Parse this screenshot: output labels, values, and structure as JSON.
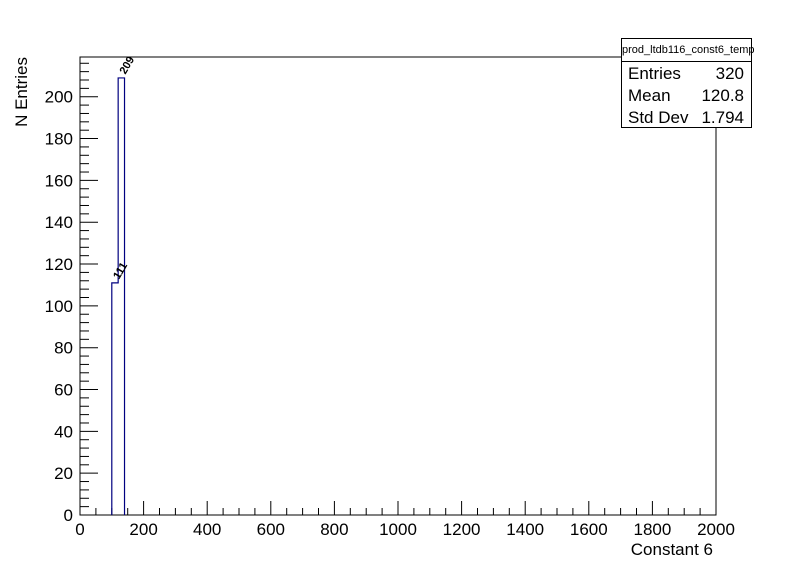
{
  "chart_data": {
    "type": "bar",
    "subtype": "histogram",
    "xlabel": "Constant 6",
    "ylabel": "N Entries",
    "xlim": [
      0,
      2000
    ],
    "ylim": [
      0,
      219
    ],
    "x_ticks": [
      0,
      200,
      400,
      600,
      800,
      1000,
      1200,
      1400,
      1600,
      1800,
      2000
    ],
    "y_ticks": [
      0,
      20,
      40,
      60,
      80,
      100,
      120,
      140,
      160,
      180,
      200
    ],
    "bin_width": 20,
    "bins": [
      {
        "x_low": 100,
        "x_high": 120,
        "value": 111,
        "label": "111"
      },
      {
        "x_low": 120,
        "x_high": 140,
        "value": 209,
        "label": "209"
      }
    ],
    "line_color": "#000080",
    "grid": false,
    "legend": "none"
  },
  "stats": {
    "title": "prod_ltdb116_const6_temp",
    "rows": [
      {
        "label": "Entries",
        "value": "320"
      },
      {
        "label": "Mean",
        "value": "120.8"
      },
      {
        "label": "Std Dev",
        "value": "1.794"
      }
    ]
  }
}
